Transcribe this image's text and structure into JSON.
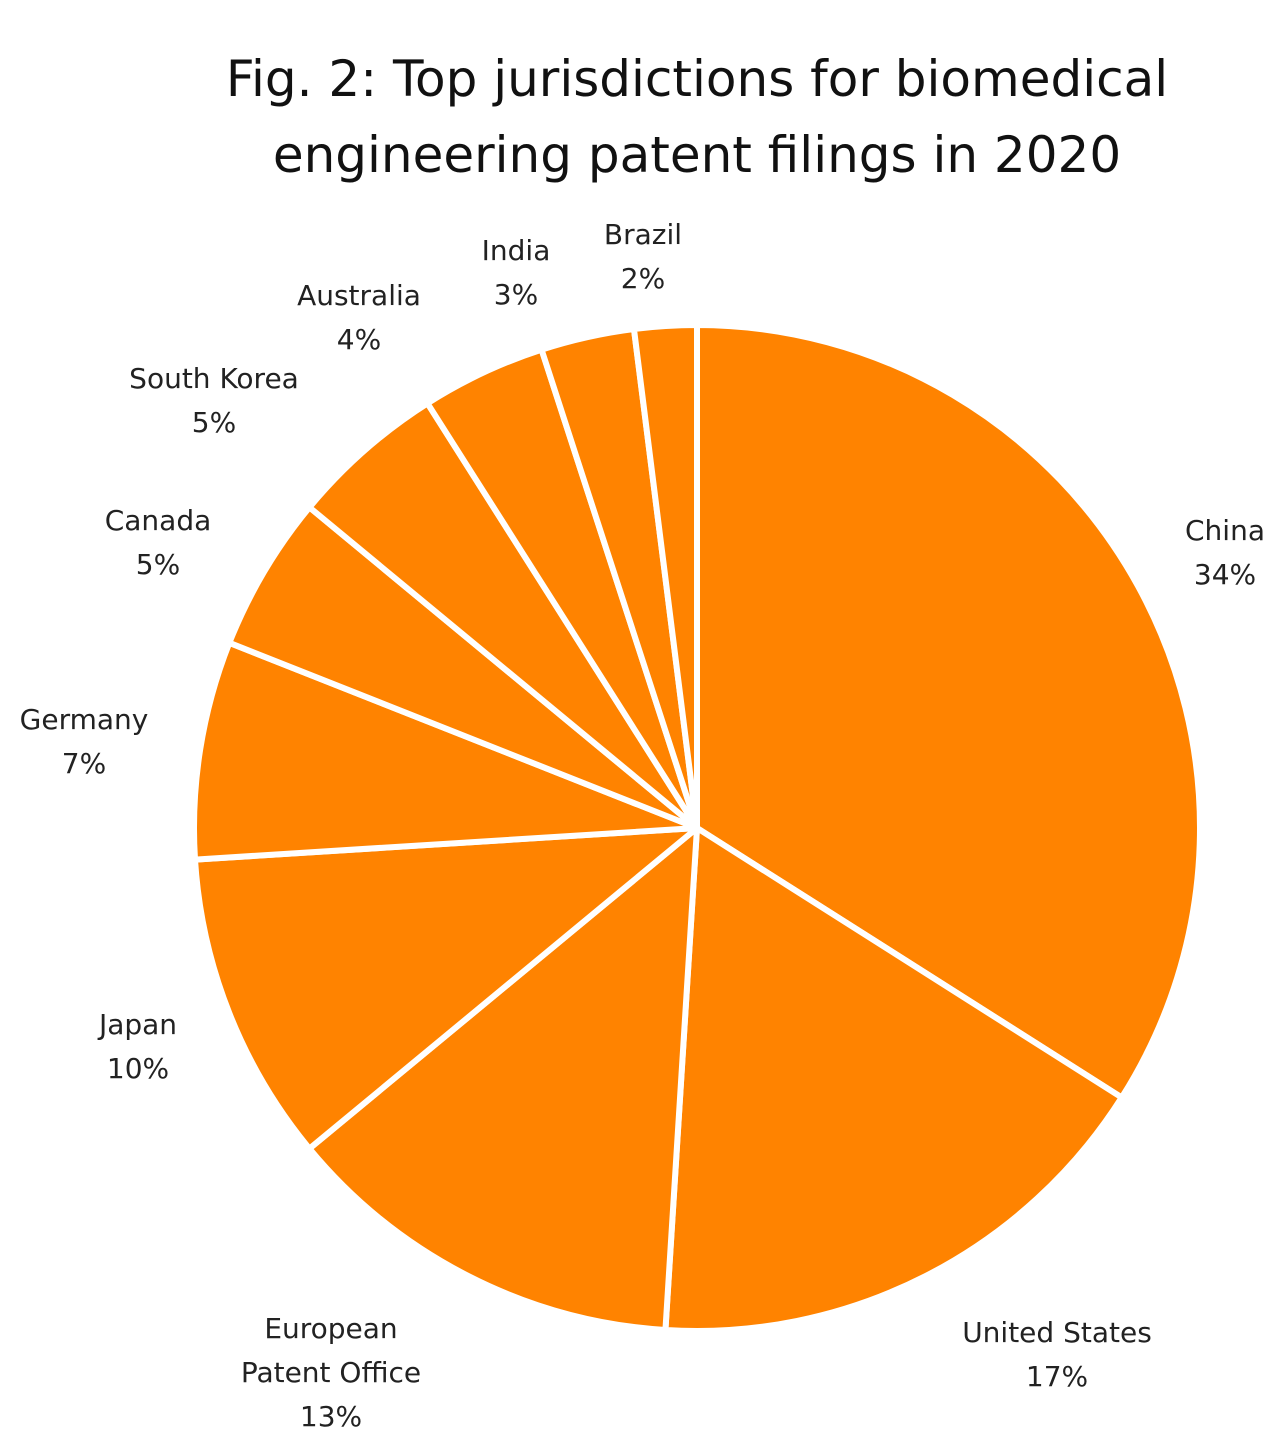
{
  "chart_data": {
    "type": "pie",
    "title_lines": [
      "Fig. 2: Top jurisdictions for biomedical",
      "engineering patent filings in 2020"
    ],
    "start": "top",
    "direction": "clockwise",
    "slice_color": "#FF8300",
    "separator_color": "#FFFFFF",
    "slices": [
      {
        "label": [
          "China"
        ],
        "value": 34,
        "value_label": "34%"
      },
      {
        "label": [
          "United States"
        ],
        "value": 17,
        "value_label": "17%"
      },
      {
        "label": [
          "European",
          "Patent Office"
        ],
        "value": 13,
        "value_label": "13%"
      },
      {
        "label": [
          "Japan"
        ],
        "value": 10,
        "value_label": "10%"
      },
      {
        "label": [
          "Germany"
        ],
        "value": 7,
        "value_label": "7%"
      },
      {
        "label": [
          "Canada"
        ],
        "value": 5,
        "value_label": "5%"
      },
      {
        "label": [
          "South Korea"
        ],
        "value": 5,
        "value_label": "5%"
      },
      {
        "label": [
          "Australia"
        ],
        "value": 4,
        "value_label": "4%"
      },
      {
        "label": [
          "India"
        ],
        "value": 3,
        "value_label": "3%"
      },
      {
        "label": [
          "Brazil"
        ],
        "value": 2,
        "value_label": "2%"
      }
    ]
  }
}
